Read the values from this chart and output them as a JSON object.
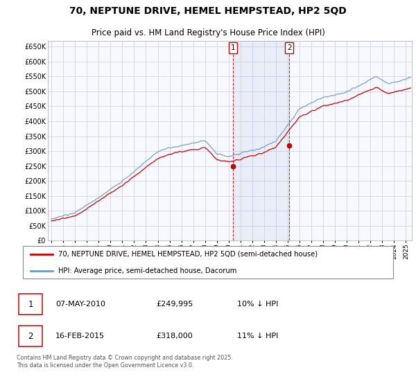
{
  "title": "70, NEPTUNE DRIVE, HEMEL HEMPSTEAD, HP2 5QD",
  "subtitle": "Price paid vs. HM Land Registry's House Price Index (HPI)",
  "ylim": [
    0,
    670000
  ],
  "yticks": [
    0,
    50000,
    100000,
    150000,
    200000,
    250000,
    300000,
    350000,
    400000,
    450000,
    500000,
    550000,
    600000,
    650000
  ],
  "xlim_start": 1994.7,
  "xlim_end": 2025.5,
  "property_color": "#cc0000",
  "hpi_color": "#6699cc",
  "hpi_fill_color": "#ddeeff",
  "sale1_date": "07-MAY-2010",
  "sale1_price": 249995,
  "sale1_label": "10% ↓ HPI",
  "sale1_x": 2010.35,
  "sale2_date": "16-FEB-2015",
  "sale2_price": 318000,
  "sale2_label": "11% ↓ HPI",
  "sale2_x": 2015.12,
  "legend_property": "70, NEPTUNE DRIVE, HEMEL HEMPSTEAD, HP2 5QD (semi-detached house)",
  "legend_hpi": "HPI: Average price, semi-detached house, Dacorum",
  "footer": "Contains HM Land Registry data © Crown copyright and database right 2025.\nThis data is licensed under the Open Government Licence v3.0.",
  "plot_bg": "#f8f8ff",
  "grid_color": "#ccccdd",
  "title_fontsize": 10,
  "subtitle_fontsize": 8.5
}
